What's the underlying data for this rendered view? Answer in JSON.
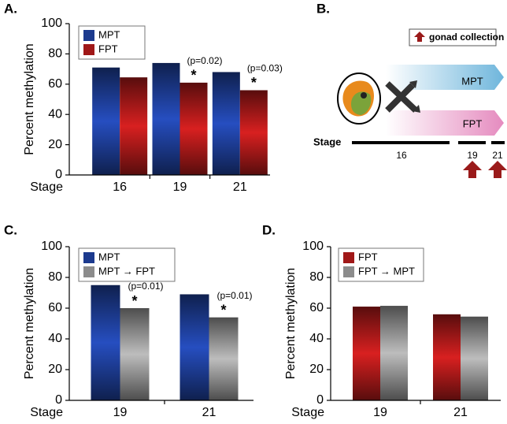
{
  "chart_data": [
    {
      "type": "bar",
      "panel_label": "A.",
      "y_label": "Percent methylation",
      "x_label": "Stage",
      "categories": [
        "16",
        "19",
        "21"
      ],
      "series": [
        {
          "name": "MPT",
          "color": "#1c3a8e",
          "values": [
            71,
            74,
            68
          ]
        },
        {
          "name": "FPT",
          "color": "#a01818",
          "values": [
            64.5,
            61,
            56
          ]
        }
      ],
      "annotations": [
        {
          "label": "(p=0.02)",
          "mark": "*",
          "series": 1,
          "category": 1
        },
        {
          "label": "(p=0.03)",
          "mark": "*",
          "series": 1,
          "category": 2
        }
      ],
      "ylim": [
        0,
        100
      ],
      "yticks": [
        0,
        20,
        40,
        60,
        80,
        100
      ]
    },
    {
      "type": "bar",
      "panel_label": "C.",
      "y_label": "Percent methylation",
      "x_label": "Stage",
      "categories": [
        "19",
        "21"
      ],
      "series": [
        {
          "name": "MPT",
          "color": "#1c3a8e",
          "values": [
            75,
            69
          ]
        },
        {
          "name": "MPT → FPT",
          "color": "#8c8c8c",
          "values": [
            60,
            54
          ]
        }
      ],
      "annotations": [
        {
          "label": "(p=0.01)",
          "mark": "*",
          "series": 1,
          "category": 0
        },
        {
          "label": "(p=0.01)",
          "mark": "*",
          "series": 1,
          "category": 1
        }
      ],
      "ylim": [
        0,
        100
      ],
      "yticks": [
        0,
        20,
        40,
        60,
        80,
        100
      ]
    },
    {
      "type": "bar",
      "panel_label": "D.",
      "y_label": "Percent methylation",
      "x_label": "Stage",
      "categories": [
        "19",
        "21"
      ],
      "series": [
        {
          "name": "FPT",
          "color": "#a01818",
          "values": [
            61,
            56
          ]
        },
        {
          "name": "FPT → MPT",
          "color": "#8c8c8c",
          "values": [
            61.5,
            54.5
          ]
        }
      ],
      "ylim": [
        0,
        100
      ],
      "yticks": [
        0,
        20,
        40,
        60,
        80,
        100
      ]
    }
  ],
  "diagram": {
    "panel_label": "B.",
    "legend": "gonad collection",
    "upper_arrow": "MPT",
    "lower_arrow": "FPT",
    "stage_label": "Stage",
    "stages": [
      "16",
      "19",
      "21"
    ]
  }
}
